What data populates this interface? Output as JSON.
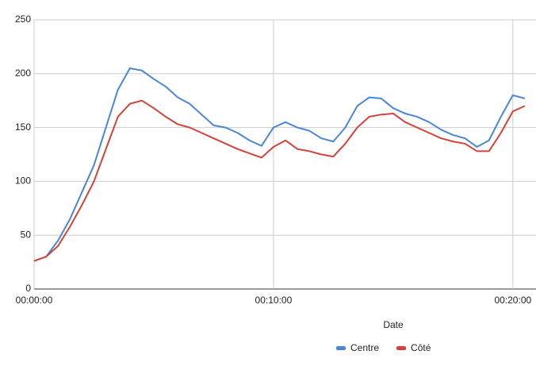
{
  "chart_data": {
    "type": "line",
    "x_label": "Date",
    "x": [
      0,
      30,
      60,
      90,
      120,
      150,
      180,
      210,
      240,
      270,
      300,
      330,
      360,
      390,
      420,
      450,
      480,
      510,
      540,
      570,
      600,
      630,
      660,
      690,
      720,
      750,
      780,
      810,
      840,
      870,
      900,
      930,
      960,
      990,
      1020,
      1050,
      1080,
      1110,
      1140,
      1170,
      1200,
      1230
    ],
    "series": [
      {
        "name": "Centre",
        "color": "#4a86d8",
        "values": [
          26,
          30,
          45,
          65,
          90,
          115,
          150,
          185,
          205,
          203,
          195,
          188,
          178,
          172,
          162,
          152,
          150,
          145,
          138,
          133,
          150,
          155,
          150,
          147,
          140,
          137,
          150,
          170,
          178,
          177,
          168,
          163,
          160,
          155,
          148,
          143,
          140,
          132,
          138,
          160,
          180,
          177
        ]
      },
      {
        "name": "Côté",
        "color": "#d2433a",
        "values": [
          26,
          30,
          40,
          58,
          78,
          100,
          130,
          160,
          172,
          175,
          168,
          160,
          153,
          150,
          145,
          140,
          135,
          130,
          126,
          122,
          132,
          138,
          130,
          128,
          125,
          123,
          135,
          150,
          160,
          162,
          163,
          155,
          150,
          145,
          140,
          137,
          135,
          128,
          128,
          145,
          165,
          170
        ]
      }
    ],
    "xlim": [
      0,
      1258
    ],
    "xticks": [
      {
        "value": 0,
        "label": "00:00:00"
      },
      {
        "value": 600,
        "label": "00:10:00"
      },
      {
        "value": 1200,
        "label": "00:20:00"
      }
    ],
    "ylim": [
      0,
      250
    ],
    "yticks": [
      0,
      50,
      100,
      150,
      200,
      250
    ],
    "grid": true,
    "legend": "bottom"
  }
}
